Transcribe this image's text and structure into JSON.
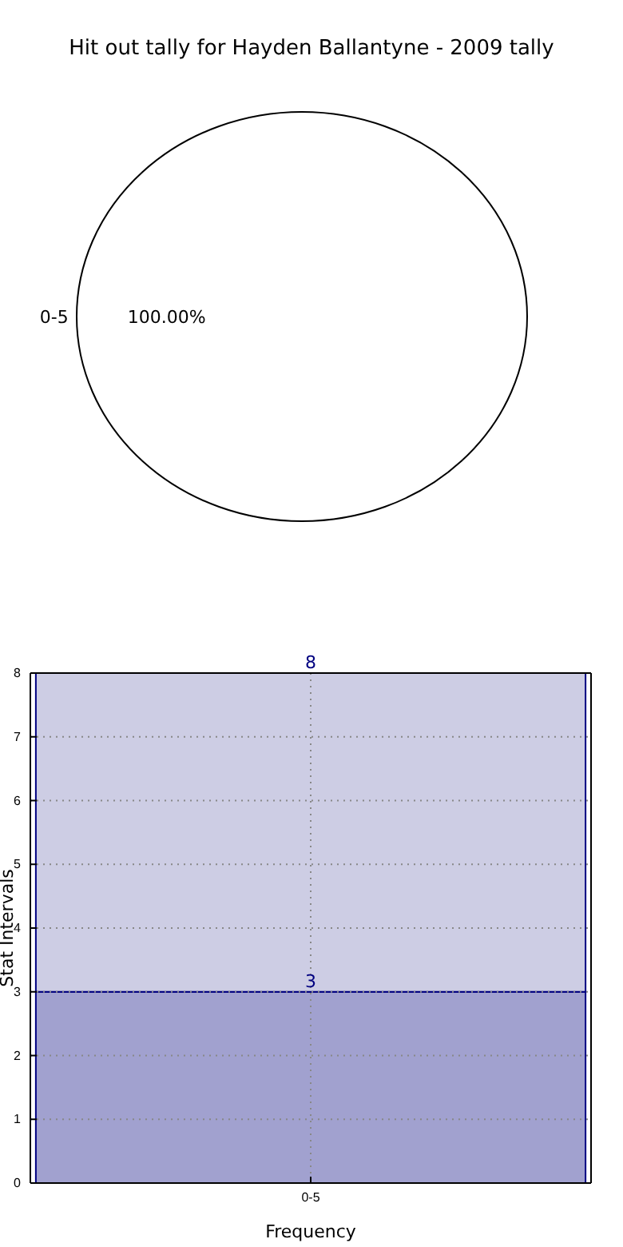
{
  "chart_data": [
    {
      "type": "pie",
      "title": "Hit out tally for Hayden Ballantyne - 2009 tally",
      "categories": [
        "0-5"
      ],
      "values": [
        100
      ],
      "colors": [
        "#ffffff"
      ],
      "value_labels": [
        "100.00%"
      ]
    },
    {
      "type": "bar",
      "categories": [
        "0-5"
      ],
      "stacked": true,
      "series": [
        {
          "values": [
            3
          ],
          "color": "#a1a1cf",
          "value_labels": [
            "3"
          ]
        },
        {
          "values": [
            5
          ],
          "color": "#cdcde4",
          "value_labels": [
            null
          ]
        }
      ],
      "totals": [
        "8"
      ],
      "xlabel": "Frequency",
      "ylabel": "Stat Intervals",
      "ylim": [
        0,
        8
      ],
      "yticks": [
        0,
        1,
        2,
        3,
        4,
        5,
        6,
        7,
        8
      ],
      "grid": true
    }
  ]
}
